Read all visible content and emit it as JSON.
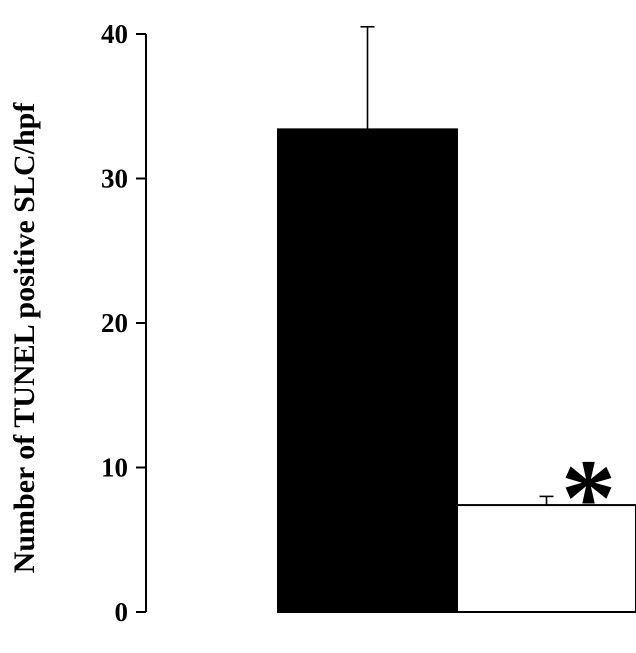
{
  "chart_data": {
    "type": "bar",
    "title": "",
    "xlabel": "",
    "ylabel": "Number of TUNEL positive SLC/hpf",
    "ylim": [
      0,
      40
    ],
    "yticks": [
      0,
      10,
      20,
      30,
      40
    ],
    "grid": false,
    "categories": [
      "",
      ""
    ],
    "values": [
      33.4,
      7.4
    ],
    "errors": [
      7.1,
      0.6
    ],
    "bar_colors": [
      "#000000",
      "#ffffff"
    ],
    "annotations": [
      {
        "text": "*",
        "category_index": 1
      }
    ]
  }
}
